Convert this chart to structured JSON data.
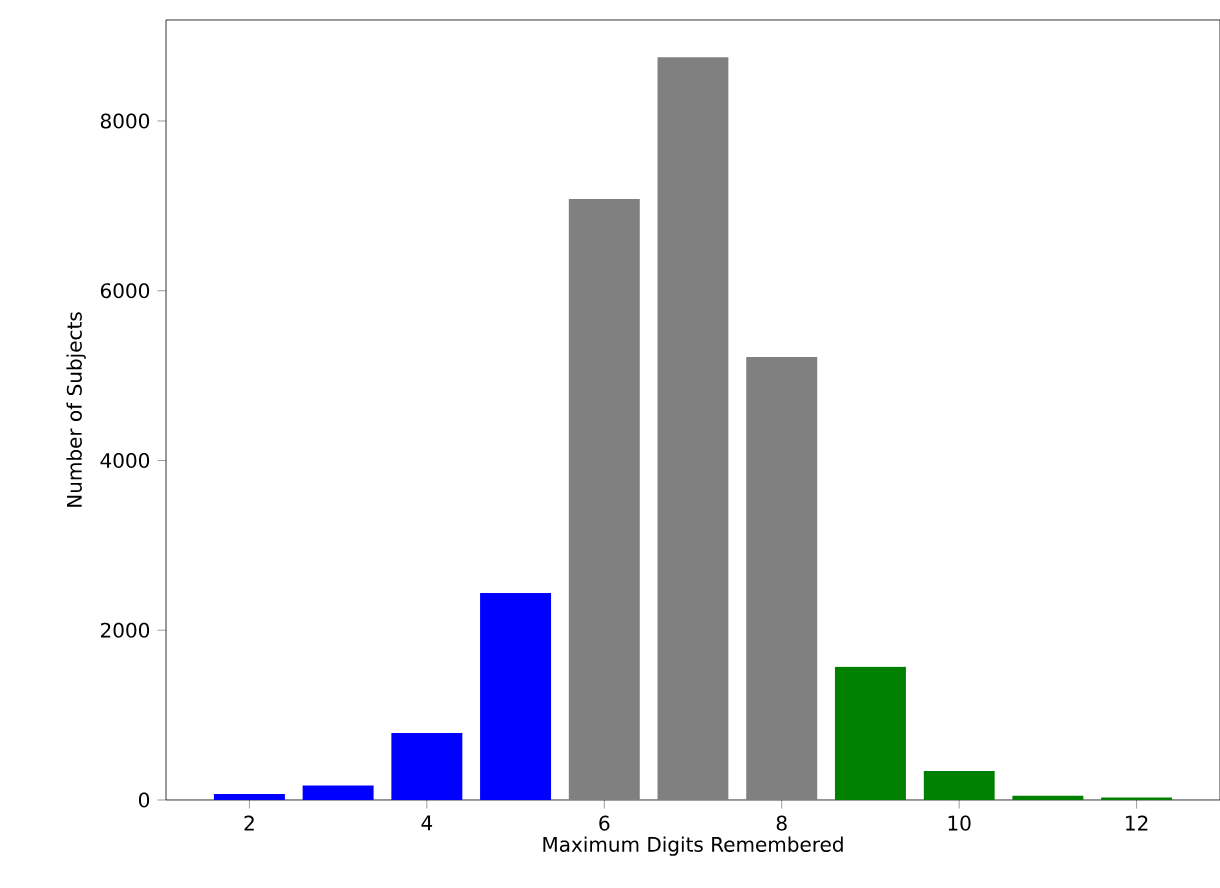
{
  "chart_data": {
    "type": "bar",
    "xlabel": "Maximum Digits Remembered",
    "ylabel": "Number of Subjects",
    "x": [
      2,
      3,
      4,
      5,
      6,
      7,
      8,
      9,
      10,
      11,
      12
    ],
    "values": [
      70,
      170,
      790,
      2440,
      7080,
      8750,
      5220,
      1570,
      340,
      50,
      30
    ],
    "colors": [
      "#0000ff",
      "#0000ff",
      "#0000ff",
      "#0000ff",
      "#808080",
      "#808080",
      "#808080",
      "#008000",
      "#008000",
      "#008000",
      "#008000"
    ],
    "xlim": [
      1.06,
      12.94
    ],
    "ylim": [
      0,
      9190
    ],
    "xticks": [
      2,
      4,
      6,
      8,
      10,
      12
    ],
    "yticks": [
      0,
      2000,
      4000,
      6000,
      8000
    ]
  }
}
